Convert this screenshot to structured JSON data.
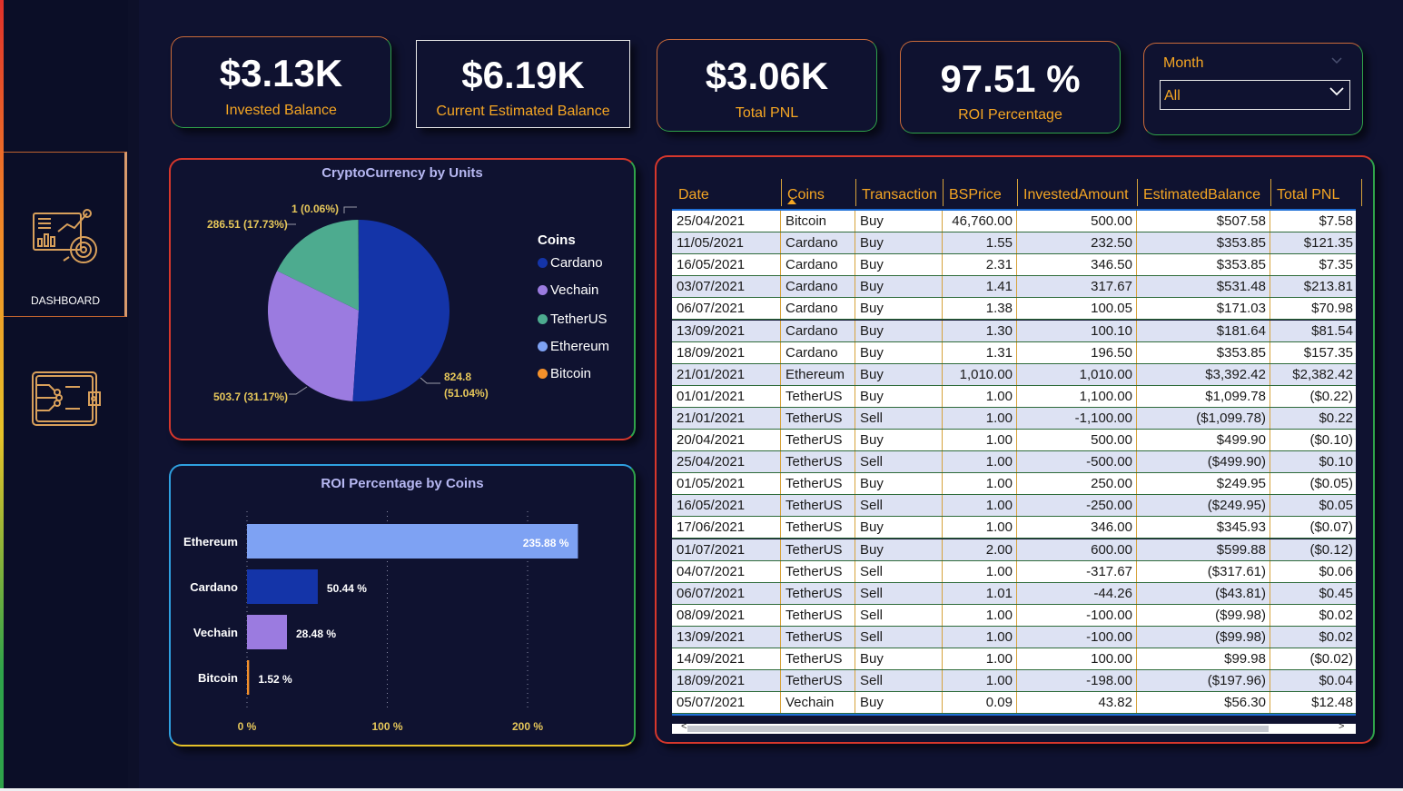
{
  "sidebar": {
    "items": [
      {
        "label": "DASHBOARD",
        "icon": "dashboard-chart-icon",
        "active": true
      },
      {
        "label": "",
        "icon": "crypto-wallet-icon",
        "active": false
      }
    ]
  },
  "kpis": [
    {
      "value": "$3.13K",
      "label": "Invested Balance"
    },
    {
      "value": "$6.19K",
      "label": "Current Estimated Balance"
    },
    {
      "value": "$3.06K",
      "label": "Total PNL"
    },
    {
      "value": "97.51 %",
      "label": "ROI Percentage"
    }
  ],
  "slicer": {
    "title": "Month",
    "value": "All"
  },
  "pie": {
    "title": "CryptoCurrency by Units",
    "legend_title": "Coins",
    "legend": [
      {
        "name": "Cardano",
        "color": "#1434a8"
      },
      {
        "name": "Vechain",
        "color": "#9b7be0"
      },
      {
        "name": "TetherUS",
        "color": "#4dab8f"
      },
      {
        "name": "Ethereum",
        "color": "#7ea2f3"
      },
      {
        "name": "Bitcoin",
        "color": "#f5912b"
      }
    ],
    "labels": {
      "cardano": "824.8",
      "cardano_pct": "(51.04%)",
      "vechain": "503.7 (31.17%)",
      "tether": "286.51 (17.73%)",
      "ethereum": "1 (0.06%)"
    }
  },
  "chart_data": [
    {
      "type": "pie",
      "title": "CryptoCurrency by Units",
      "legend_title": "Coins",
      "slices": [
        {
          "name": "Cardano",
          "value": 824.8,
          "percent": 51.04
        },
        {
          "name": "Vechain",
          "value": 503.7,
          "percent": 31.17
        },
        {
          "name": "TetherUS",
          "value": 286.51,
          "percent": 17.73
        },
        {
          "name": "Ethereum",
          "value": 1,
          "percent": 0.06
        },
        {
          "name": "Bitcoin",
          "value": 0.01,
          "percent": 0.0
        }
      ],
      "legend_placement": "right"
    },
    {
      "type": "bar",
      "orientation": "horizontal",
      "title": "ROI Percentage by Coins",
      "categories": [
        "Ethereum",
        "Cardano",
        "Vechain",
        "Bitcoin"
      ],
      "values": [
        235.88,
        50.44,
        28.48,
        1.52
      ],
      "value_labels": [
        "235.88 %",
        "50.44 %",
        "28.48 %",
        "1.52 %"
      ],
      "colors": [
        "#7ea2f3",
        "#1434a8",
        "#9b7be0",
        "#f5912b"
      ],
      "xticks": [
        "0 %",
        "100 %",
        "200 %"
      ],
      "xlim": [
        0,
        260
      ],
      "grid": true
    }
  ],
  "bar": {
    "title": "ROI Percentage by Coins",
    "categories": [
      "Ethereum",
      "Cardano",
      "Vechain",
      "Bitcoin"
    ],
    "value_labels": [
      "235.88 %",
      "50.44 %",
      "28.48 %",
      "1.52 %"
    ],
    "xticks": [
      "0 %",
      "100 %",
      "200 %"
    ]
  },
  "table": {
    "columns": [
      "Date",
      "Coins",
      "Transaction",
      "BSPrice",
      "InvestedAmount",
      "EstimatedBalance",
      "Total PNL"
    ],
    "rows": [
      [
        "25/04/2021",
        "Bitcoin",
        "Buy",
        "46,760.00",
        "500.00",
        "$507.58",
        "$7.58"
      ],
      [
        "11/05/2021",
        "Cardano",
        "Buy",
        "1.55",
        "232.50",
        "$353.85",
        "$121.35"
      ],
      [
        "16/05/2021",
        "Cardano",
        "Buy",
        "2.31",
        "346.50",
        "$353.85",
        "$7.35"
      ],
      [
        "03/07/2021",
        "Cardano",
        "Buy",
        "1.41",
        "317.67",
        "$531.48",
        "$213.81"
      ],
      [
        "06/07/2021",
        "Cardano",
        "Buy",
        "1.38",
        "100.05",
        "$171.03",
        "$70.98"
      ],
      [
        "13/09/2021",
        "Cardano",
        "Buy",
        "1.30",
        "100.10",
        "$181.64",
        "$81.54"
      ],
      [
        "18/09/2021",
        "Cardano",
        "Buy",
        "1.31",
        "196.50",
        "$353.85",
        "$157.35"
      ],
      [
        "21/01/2021",
        "Ethereum",
        "Buy",
        "1,010.00",
        "1,010.00",
        "$3,392.42",
        "$2,382.42"
      ],
      [
        "01/01/2021",
        "TetherUS",
        "Buy",
        "1.00",
        "1,100.00",
        "$1,099.78",
        "($0.22)"
      ],
      [
        "21/01/2021",
        "TetherUS",
        "Sell",
        "1.00",
        "-1,100.00",
        "($1,099.78)",
        "$0.22"
      ],
      [
        "20/04/2021",
        "TetherUS",
        "Buy",
        "1.00",
        "500.00",
        "$499.90",
        "($0.10)"
      ],
      [
        "25/04/2021",
        "TetherUS",
        "Sell",
        "1.00",
        "-500.00",
        "($499.90)",
        "$0.10"
      ],
      [
        "01/05/2021",
        "TetherUS",
        "Buy",
        "1.00",
        "250.00",
        "$249.95",
        "($0.05)"
      ],
      [
        "16/05/2021",
        "TetherUS",
        "Sell",
        "1.00",
        "-250.00",
        "($249.95)",
        "$0.05"
      ],
      [
        "17/06/2021",
        "TetherUS",
        "Buy",
        "1.00",
        "346.00",
        "$345.93",
        "($0.07)"
      ],
      [
        "01/07/2021",
        "TetherUS",
        "Buy",
        "2.00",
        "600.00",
        "$599.88",
        "($0.12)"
      ],
      [
        "04/07/2021",
        "TetherUS",
        "Sell",
        "1.00",
        "-317.67",
        "($317.61)",
        "$0.06"
      ],
      [
        "06/07/2021",
        "TetherUS",
        "Sell",
        "1.01",
        "-44.26",
        "($43.81)",
        "$0.45"
      ],
      [
        "08/09/2021",
        "TetherUS",
        "Sell",
        "1.00",
        "-100.00",
        "($99.98)",
        "$0.02"
      ],
      [
        "13/09/2021",
        "TetherUS",
        "Sell",
        "1.00",
        "-100.00",
        "($99.98)",
        "$0.02"
      ],
      [
        "14/09/2021",
        "TetherUS",
        "Buy",
        "1.00",
        "100.00",
        "$99.98",
        "($0.02)"
      ],
      [
        "18/09/2021",
        "TetherUS",
        "Sell",
        "1.00",
        "-198.00",
        "($197.96)",
        "$0.04"
      ],
      [
        "05/07/2021",
        "Vechain",
        "Buy",
        "0.09",
        "43.82",
        "$56.30",
        "$12.48"
      ]
    ]
  },
  "colors": {
    "background": "#0f1230",
    "sidebar": "#0b0e27",
    "accent_orange": "#f5a623",
    "title_lavender": "#b7b8f2"
  }
}
